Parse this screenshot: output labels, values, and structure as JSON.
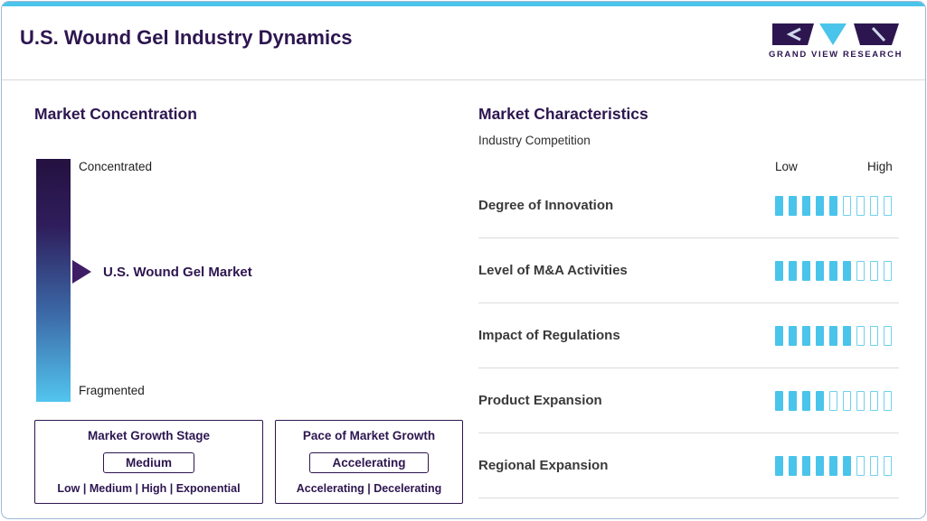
{
  "page": {
    "title": "U.S. Wound Gel Industry Dynamics",
    "logo_text": "GRAND VIEW RESEARCH"
  },
  "colors": {
    "brand_purple": "#2d1650",
    "brand_cyan": "#4ac4ea"
  },
  "market_concentration": {
    "heading": "Market Concentration",
    "scale_top_label": "Concentrated",
    "scale_bottom_label": "Fragmented",
    "marker_label": "U.S. Wound Gel Market",
    "growth_stage_box": {
      "title": "Market Growth Stage",
      "value": "Medium",
      "options": "Low | Medium | High | Exponential"
    },
    "pace_box": {
      "title": "Pace of Market Growth",
      "value": "Accelerating",
      "options": "Accelerating | Decelerating"
    }
  },
  "market_characteristics": {
    "heading": "Market Characteristics",
    "subheading": "Industry Competition",
    "scale_low_label": "Low",
    "scale_high_label": "High",
    "rows": [
      {
        "label": "Degree of Innovation",
        "filled": 5,
        "total": 9
      },
      {
        "label": "Level of M&A Activities",
        "filled": 6,
        "total": 9
      },
      {
        "label": "Impact of Regulations",
        "filled": 6,
        "total": 9
      },
      {
        "label": "Product Expansion",
        "filled": 4,
        "total": 9
      },
      {
        "label": "Regional Expansion",
        "filled": 6,
        "total": 9
      }
    ]
  },
  "chart_data": {
    "type": "bar",
    "title": "Industry Competition",
    "categories": [
      "Degree of Innovation",
      "Level of M&A Activities",
      "Impact of Regulations",
      "Product Expansion",
      "Regional Expansion"
    ],
    "values": [
      5,
      6,
      6,
      4,
      6
    ],
    "scale": {
      "segments": 9,
      "min_label": "Low",
      "max_label": "High"
    },
    "secondary_scale": {
      "type": "gradient",
      "top_label": "Concentrated",
      "bottom_label": "Fragmented",
      "marker": "U.S. Wound Gel Market",
      "marker_position": "middle"
    }
  }
}
